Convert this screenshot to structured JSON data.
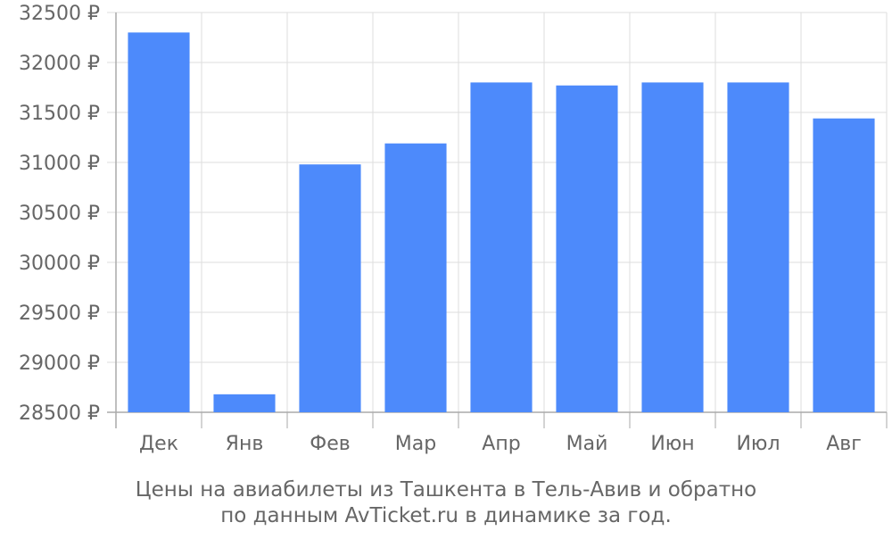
{
  "chart_data": {
    "type": "bar",
    "categories": [
      "Дек",
      "Янв",
      "Фев",
      "Мар",
      "Апр",
      "Май",
      "Июн",
      "Июл",
      "Авг"
    ],
    "values": [
      32300,
      28680,
      30980,
      31190,
      31800,
      31770,
      31800,
      31800,
      31440
    ],
    "ylim": [
      28500,
      32500
    ],
    "yticks": [
      28500,
      29000,
      29500,
      30000,
      30500,
      31000,
      31500,
      32000,
      32500
    ],
    "ytick_suffix": " ₽",
    "grid": true,
    "bar_color": "#4d8afb",
    "grid_color": "#dddddd",
    "axis_color": "#aaaaaa",
    "text_color": "#666666"
  },
  "caption": {
    "line1": "Цены на авиабилеты из Ташкента в Тель-Авив и обратно",
    "line2": "по данным AvTicket.ru в динамике за год."
  }
}
